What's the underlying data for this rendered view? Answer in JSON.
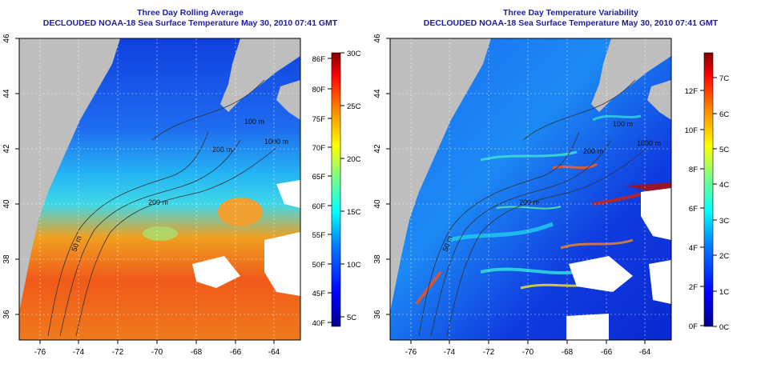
{
  "left_panel": {
    "title": "Three Day Rolling Average",
    "subtitle": "DECLOUDED NOAA-18 Sea Surface Temperature May 30, 2010 07:41 GMT",
    "lat_ticks": [
      "46",
      "44",
      "42",
      "40",
      "38",
      "36"
    ],
    "lon_ticks": [
      "-76",
      "-74",
      "-72",
      "-70",
      "-68",
      "-66",
      "-64"
    ],
    "contour_labels": [
      "100 m",
      "200 m",
      "1000 m",
      "200 m",
      "50 m"
    ],
    "colorbar": {
      "f_labels": [
        "86F",
        "80F",
        "75F",
        "70F",
        "65F",
        "60F",
        "55F",
        "50F",
        "45F",
        "40F"
      ],
      "c_labels": [
        "30C",
        "25C",
        "20C",
        "15C",
        "10C",
        "5C"
      ]
    }
  },
  "right_panel": {
    "title": "Three Day Temperature Variability",
    "subtitle": "DECLOUDED NOAA-18 Sea Surface Temperature May 30, 2010 07:41 GMT",
    "lat_ticks": [
      "46",
      "44",
      "42",
      "40",
      "38",
      "36"
    ],
    "lon_ticks": [
      "-76",
      "-74",
      "-72",
      "-70",
      "-68",
      "-66",
      "-64"
    ],
    "contour_labels": [
      "100 m",
      "1000 m",
      "200 m",
      "200 m",
      "50 m"
    ],
    "colorbar": {
      "f_labels": [
        "12F",
        "10F",
        "8F",
        "6F",
        "4F",
        "2F",
        "0F"
      ],
      "c_labels": [
        "7C",
        "6C",
        "5C",
        "4C",
        "3C",
        "2C",
        "1C",
        "0C"
      ]
    }
  },
  "colors": {
    "title": "#1f1f9e",
    "land": "#bebebe",
    "jet_ramp": [
      "#00008f",
      "#0000ff",
      "#0080ff",
      "#00ffff",
      "#80ff80",
      "#ffff00",
      "#ff8000",
      "#ff0000",
      "#800000"
    ]
  }
}
